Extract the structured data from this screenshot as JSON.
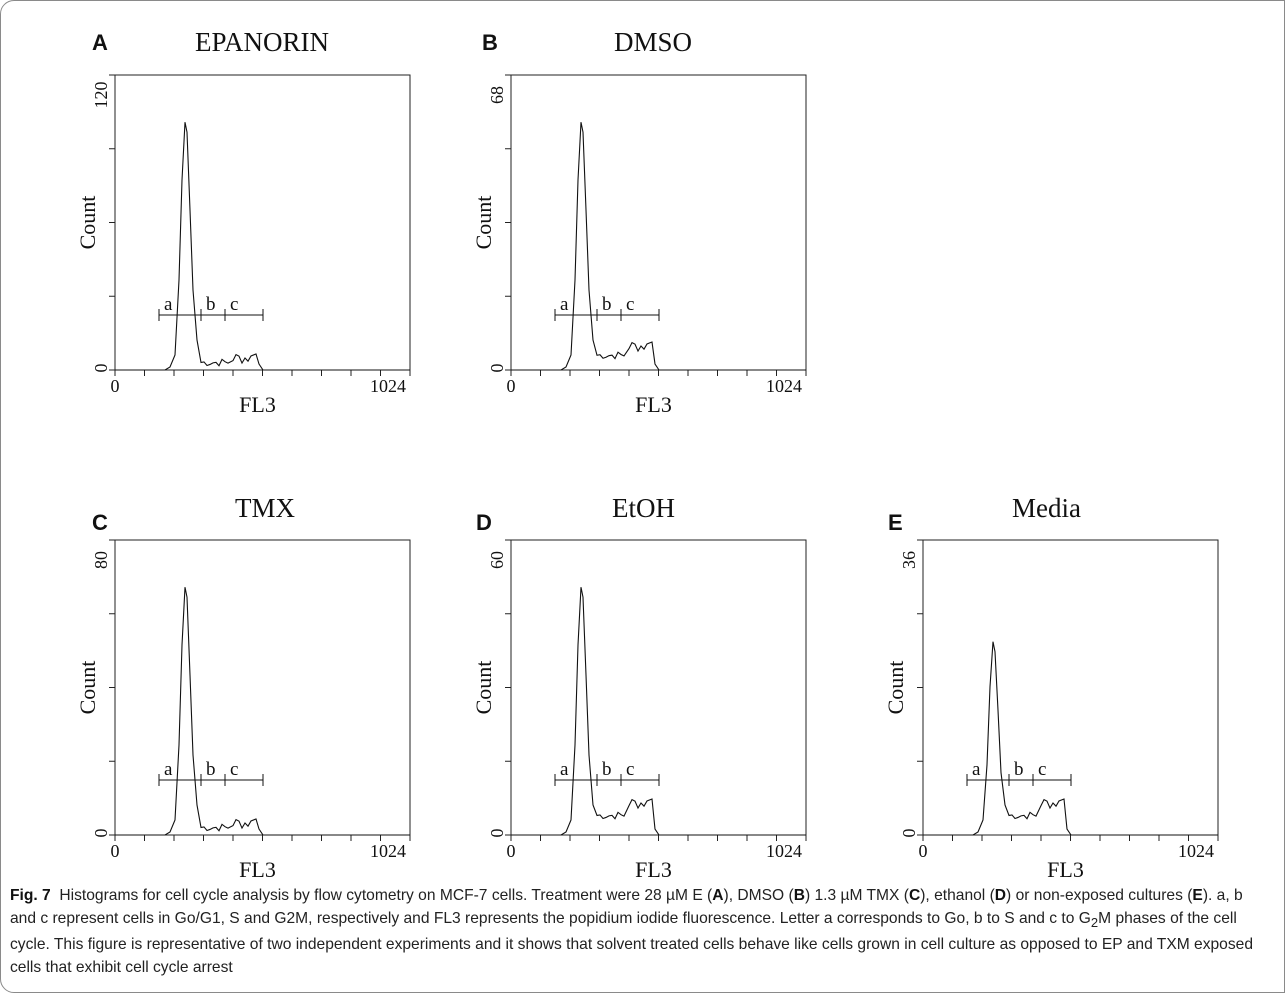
{
  "panels": [
    {
      "letter": "A",
      "title": "EPANORIN",
      "ymax_label": "120",
      "ylabel": "Count",
      "xlabel": "FL3",
      "xmin_label": "0",
      "xmax_label": "1024",
      "ymin_label": "0",
      "gates": [
        "a",
        "b",
        "c"
      ],
      "peak_height": 1.0,
      "shoulder": "low"
    },
    {
      "letter": "B",
      "title": "DMSO",
      "ymax_label": "68",
      "ylabel": "Count",
      "xlabel": "FL3",
      "xmin_label": "0",
      "xmax_label": "1024",
      "ymin_label": "0",
      "gates": [
        "a",
        "b",
        "c"
      ],
      "peak_height": 1.0,
      "shoulder": "mid"
    },
    {
      "letter": "C",
      "title": "TMX",
      "ymax_label": "80",
      "ylabel": "Count",
      "xlabel": "FL3",
      "xmin_label": "0",
      "xmax_label": "1024",
      "ymin_label": "0",
      "gates": [
        "a",
        "b",
        "c"
      ],
      "peak_height": 1.0,
      "shoulder": "low"
    },
    {
      "letter": "D",
      "title": "EtOH",
      "ymax_label": "60",
      "ylabel": "Count",
      "xlabel": "FL3",
      "xmin_label": "0",
      "xmax_label": "1024",
      "ymin_label": "0",
      "gates": [
        "a",
        "b",
        "c"
      ],
      "peak_height": 1.0,
      "shoulder": "high"
    },
    {
      "letter": "E",
      "title": "Media",
      "ymax_label": "36",
      "ylabel": "Count",
      "xlabel": "FL3",
      "xmin_label": "0",
      "xmax_label": "1024",
      "ymin_label": "0",
      "gates": [
        "a",
        "b",
        "c"
      ],
      "peak_height": 0.78,
      "shoulder": "high"
    }
  ],
  "caption": {
    "fig_label": "Fig. 7",
    "text_1": "Histograms for cell cycle analysis by flow cytometry on MCF-7 cells. Treatment were 28 µM E (",
    "b_A": "A",
    "text_2": "), DMSO (",
    "b_B": "B",
    "text_3": ") 1.3 µM TMX (",
    "b_C": "C",
    "text_4": "), ethanol (",
    "b_D": "D",
    "text_5": ") or non-exposed cultures (",
    "b_E": "E",
    "text_6": "). a, b and c represent cells in Go/G1, S and G2M, respectively and FL3 represents the popidium iodide fluorescence. Letter a corresponds to Go, b to S and c to G",
    "sub_2": "2",
    "text_7": "M phases of the cell cycle. This figure is representative of two independent experiments and it shows that solvent treated cells behave like cells grown in cell culture as opposed to EP and TXM exposed cells that exhibit cell cycle arrest"
  }
}
